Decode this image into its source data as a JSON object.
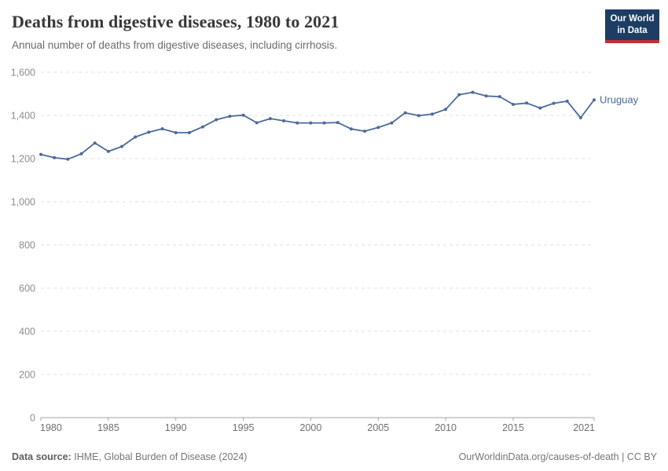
{
  "header": {
    "title": "Deaths from digestive diseases, 1980 to 2021",
    "subtitle": "Annual number of deaths from digestive diseases, including cirrhosis."
  },
  "logo": {
    "line1": "Our World",
    "line2": "in Data"
  },
  "footer": {
    "source_label": "Data source:",
    "source_text": "IHME, Global Burden of Disease (2024)",
    "credit": "OurWorldinData.org/causes-of-death | CC BY"
  },
  "chart_data": {
    "type": "line",
    "title": "Deaths from digestive diseases, 1980 to 2021",
    "xlabel": "",
    "ylabel": "",
    "xlim": [
      1980,
      2021
    ],
    "ylim": [
      0,
      1600
    ],
    "grid": "horizontal-dashed",
    "legend_position": "end-of-line",
    "x_ticks": [
      {
        "value": 1980,
        "label": "1980"
      },
      {
        "value": 1985,
        "label": "1985"
      },
      {
        "value": 1990,
        "label": "1990"
      },
      {
        "value": 1995,
        "label": "1995"
      },
      {
        "value": 2000,
        "label": "2000"
      },
      {
        "value": 2005,
        "label": "2005"
      },
      {
        "value": 2010,
        "label": "2010"
      },
      {
        "value": 2015,
        "label": "2015"
      },
      {
        "value": 2021,
        "label": "2021"
      }
    ],
    "y_ticks": [
      {
        "value": 0,
        "label": "0"
      },
      {
        "value": 200,
        "label": "200"
      },
      {
        "value": 400,
        "label": "400"
      },
      {
        "value": 600,
        "label": "600"
      },
      {
        "value": 800,
        "label": "800"
      },
      {
        "value": 1000,
        "label": "1,000"
      },
      {
        "value": 1200,
        "label": "1,200"
      },
      {
        "value": 1400,
        "label": "1,400"
      },
      {
        "value": 1600,
        "label": "1,600"
      }
    ],
    "series": [
      {
        "name": "Uruguay",
        "color": "#4C6A9C",
        "x": [
          1980,
          1981,
          1982,
          1983,
          1984,
          1985,
          1986,
          1987,
          1988,
          1989,
          1990,
          1991,
          1992,
          1993,
          1994,
          1995,
          1996,
          1997,
          1998,
          1999,
          2000,
          2001,
          2002,
          2003,
          2004,
          2005,
          2006,
          2007,
          2008,
          2009,
          2010,
          2011,
          2012,
          2013,
          2014,
          2015,
          2016,
          2017,
          2018,
          2019,
          2020,
          2021
        ],
        "values": [
          1219,
          1204,
          1197,
          1222,
          1272,
          1233,
          1256,
          1300,
          1322,
          1338,
          1320,
          1320,
          1347,
          1380,
          1396,
          1401,
          1366,
          1385,
          1375,
          1365,
          1365,
          1365,
          1367,
          1337,
          1327,
          1344,
          1365,
          1412,
          1399,
          1406,
          1428,
          1496,
          1507,
          1490,
          1487,
          1451,
          1457,
          1434,
          1456,
          1466,
          1389,
          1472
        ]
      }
    ]
  },
  "colors": {
    "line": "#4C6A9C",
    "grid": "#e0e0e0",
    "axis": "#a5a5a5",
    "y_tick_label": "#8c8c8c",
    "x_tick_label": "#6f6f6f",
    "title": "#383838",
    "subtitle": "#6b6b6b",
    "footer": "#757575",
    "logo_bg": "#1d3d63",
    "logo_stripe": "#c82d32"
  }
}
